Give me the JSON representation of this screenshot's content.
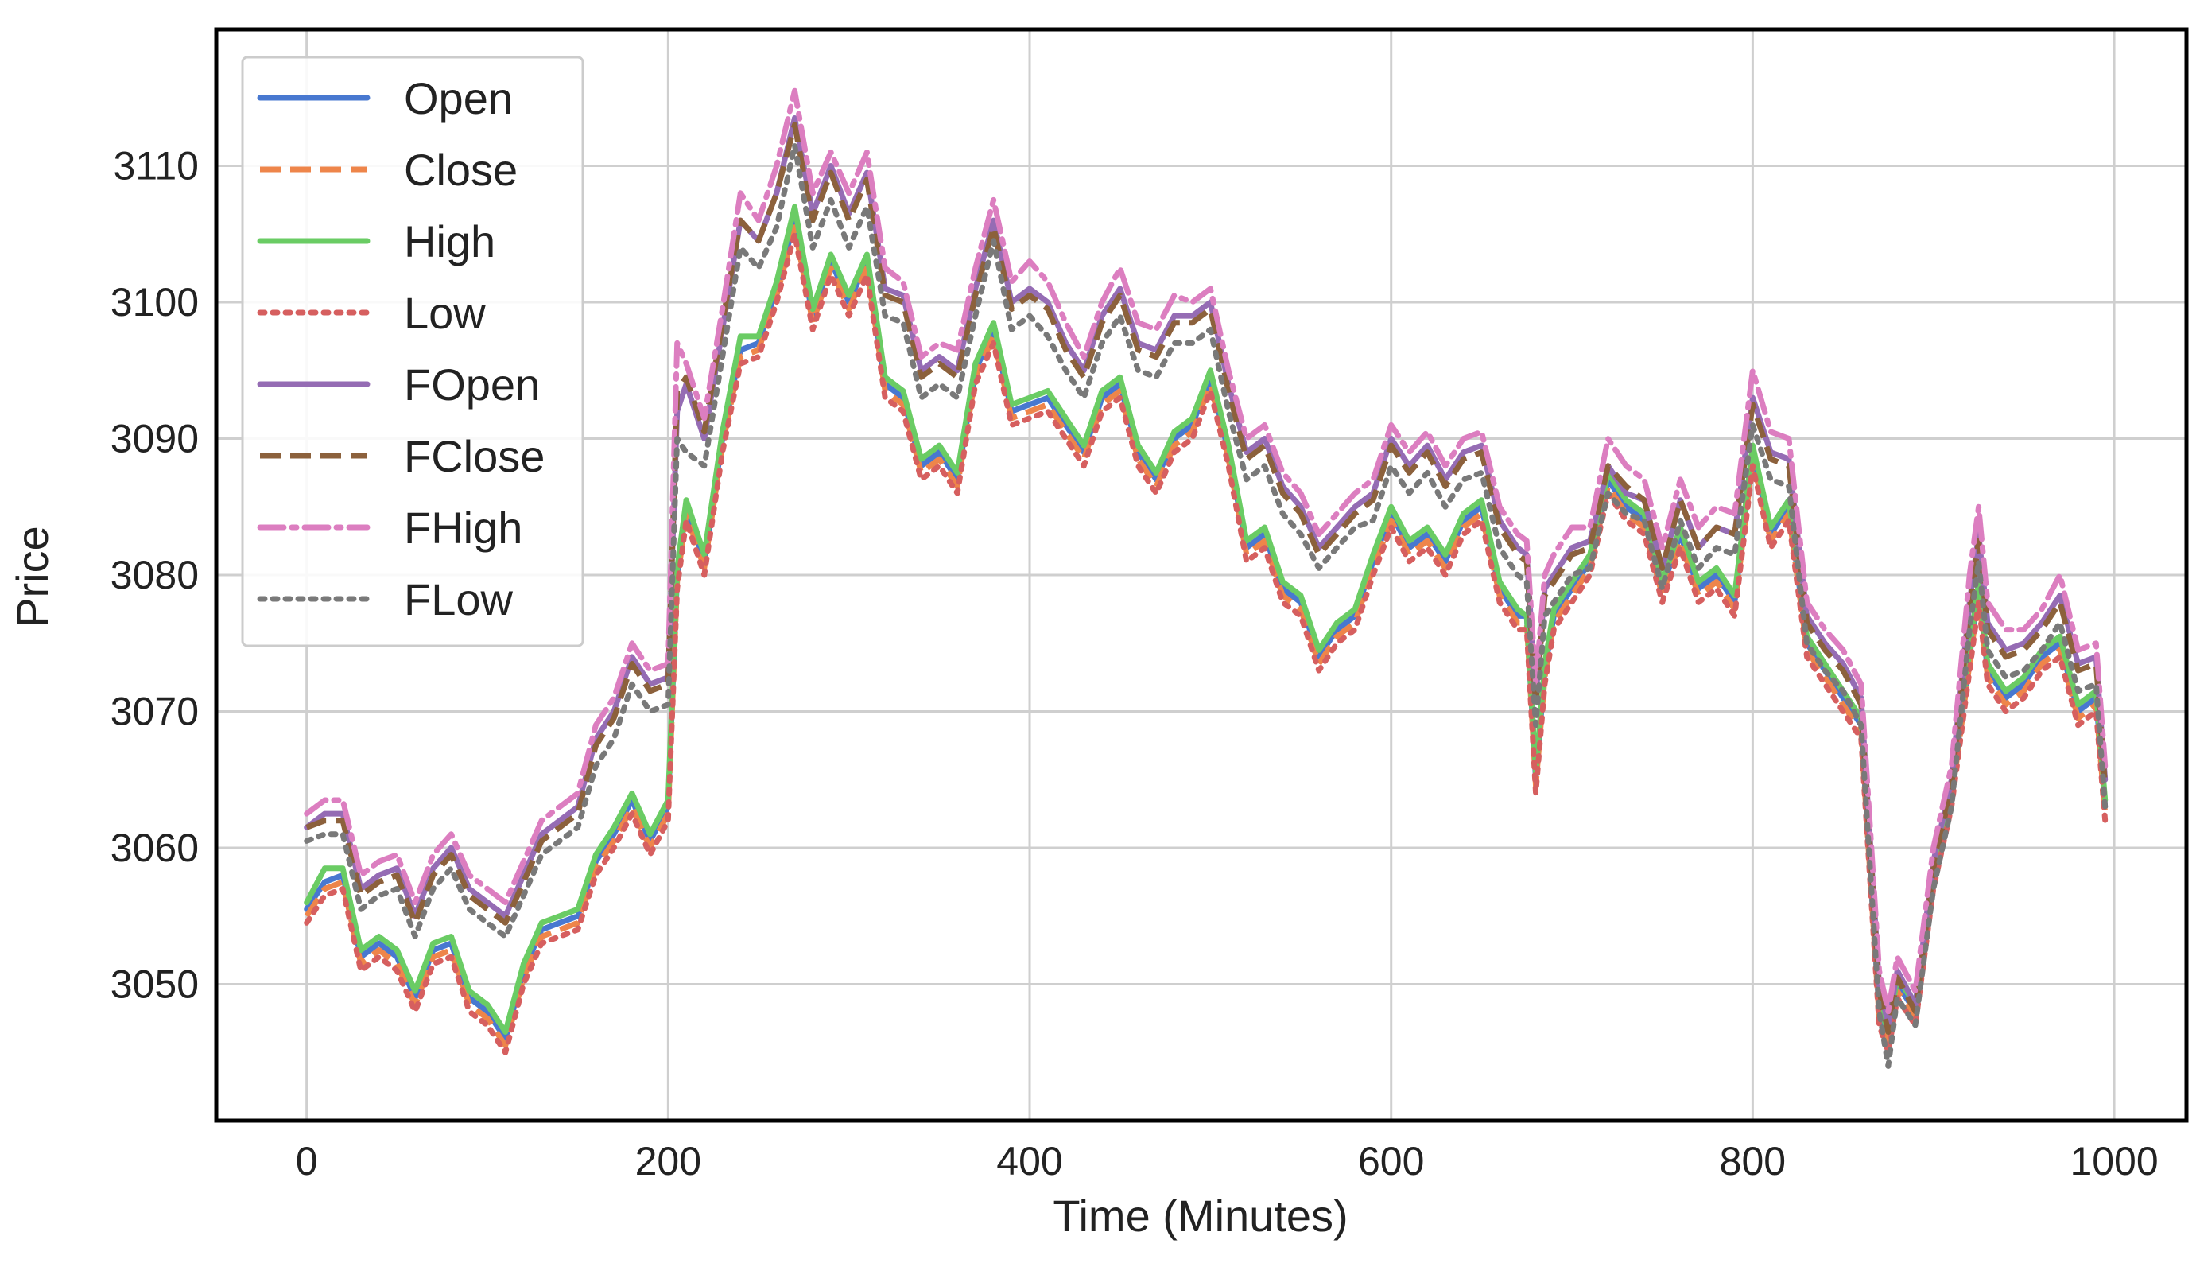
{
  "chart_data": {
    "type": "line",
    "title": "",
    "xlabel": "Time (Minutes)",
    "ylabel": "Price",
    "xlim": [
      -50,
      1040
    ],
    "ylim": [
      3040,
      3120
    ],
    "xticks": [
      0,
      200,
      400,
      600,
      800,
      1000
    ],
    "yticks": [
      3050,
      3060,
      3070,
      3080,
      3090,
      3100,
      3110
    ],
    "grid": true,
    "legend": "top-left",
    "x": [
      0,
      10,
      20,
      30,
      40,
      50,
      60,
      70,
      80,
      90,
      100,
      110,
      120,
      130,
      140,
      150,
      160,
      170,
      180,
      190,
      200,
      205,
      210,
      220,
      230,
      240,
      250,
      260,
      270,
      280,
      290,
      300,
      310,
      320,
      330,
      340,
      350,
      360,
      370,
      380,
      390,
      400,
      410,
      420,
      430,
      440,
      450,
      460,
      470,
      480,
      490,
      500,
      510,
      520,
      530,
      540,
      550,
      560,
      570,
      580,
      590,
      600,
      610,
      620,
      630,
      640,
      650,
      660,
      670,
      675,
      680,
      685,
      690,
      700,
      710,
      720,
      730,
      740,
      750,
      760,
      770,
      780,
      790,
      800,
      810,
      820,
      830,
      840,
      850,
      860,
      870,
      875,
      880,
      890,
      900,
      910,
      920,
      925,
      930,
      940,
      950,
      960,
      970,
      980,
      990,
      995
    ],
    "series": [
      {
        "name": "Open",
        "color": "#4878d0",
        "dash": "solid",
        "values": [
          3055.5,
          3057.5,
          3058,
          3052,
          3053,
          3052,
          3049,
          3052.5,
          3053,
          3049,
          3048,
          3046,
          3051,
          3054,
          3054.5,
          3055,
          3059,
          3061,
          3063.5,
          3060.5,
          3063,
          3080,
          3085,
          3081,
          3090,
          3096.5,
          3097,
          3101,
          3106,
          3099,
          3103,
          3100,
          3103,
          3094,
          3093,
          3088,
          3089,
          3087,
          3095,
          3098,
          3092,
          3092.5,
          3093,
          3091,
          3089,
          3093,
          3094,
          3089,
          3087,
          3090,
          3091,
          3094.5,
          3089,
          3082,
          3083,
          3079,
          3078,
          3074,
          3076,
          3077,
          3081,
          3084.5,
          3082,
          3083,
          3081,
          3084,
          3085,
          3079,
          3077,
          3077,
          3065,
          3073,
          3077,
          3079,
          3081,
          3087,
          3085,
          3084,
          3079,
          3083,
          3079,
          3080,
          3078,
          3089,
          3083,
          3085,
          3075,
          3073,
          3071,
          3069,
          3048,
          3046,
          3050,
          3048,
          3058,
          3064,
          3074,
          3079,
          3073,
          3071,
          3072,
          3074,
          3075,
          3070,
          3071,
          3063
        ]
      },
      {
        "name": "Close",
        "color": "#ee854a",
        "dash": "dashed",
        "values": [
          3055,
          3057,
          3057.5,
          3051.5,
          3052.5,
          3051.5,
          3048.5,
          3052,
          3052.5,
          3048.5,
          3047.5,
          3045.5,
          3050.5,
          3053.5,
          3054,
          3054.5,
          3058.5,
          3060.5,
          3063,
          3060,
          3062.5,
          3079.5,
          3084.5,
          3080.5,
          3089.5,
          3096,
          3096.5,
          3100.5,
          3105.5,
          3098.5,
          3102.5,
          3099.5,
          3102.5,
          3093.5,
          3092.5,
          3087.5,
          3088.5,
          3086.5,
          3094.5,
          3097.5,
          3091.5,
          3092,
          3092.5,
          3090.5,
          3088.5,
          3092.5,
          3093.5,
          3088.5,
          3086.5,
          3089.5,
          3090.5,
          3094,
          3088.5,
          3081.5,
          3082.5,
          3078.5,
          3077.5,
          3073.5,
          3075.5,
          3076.5,
          3080.5,
          3084,
          3081.5,
          3082.5,
          3080.5,
          3083.5,
          3084.5,
          3078.5,
          3076.5,
          3076.5,
          3064.5,
          3072.5,
          3076.5,
          3078.5,
          3080.5,
          3086.5,
          3084.5,
          3083.5,
          3078.5,
          3082.5,
          3078.5,
          3079.5,
          3077.5,
          3088.5,
          3082.5,
          3084.5,
          3074.5,
          3072.5,
          3070.5,
          3068.5,
          3047.5,
          3045.5,
          3049.5,
          3047.5,
          3057.5,
          3063.5,
          3073.5,
          3078.5,
          3072.5,
          3070.5,
          3071.5,
          3073.5,
          3074.5,
          3069.5,
          3070.5,
          3062.5
        ]
      },
      {
        "name": "High",
        "color": "#6acc64",
        "dash": "solid",
        "values": [
          3056,
          3058.5,
          3058.5,
          3052.5,
          3053.5,
          3052.5,
          3049.5,
          3053,
          3053.5,
          3049.5,
          3048.5,
          3046.5,
          3051.5,
          3054.5,
          3055,
          3055.5,
          3059.5,
          3061.5,
          3064,
          3061,
          3063.5,
          3080.5,
          3085.5,
          3081.5,
          3090.5,
          3097.5,
          3097.5,
          3101.5,
          3107,
          3099.5,
          3103.5,
          3100.5,
          3103.5,
          3094.5,
          3093.5,
          3088.5,
          3089.5,
          3087.5,
          3095.5,
          3098.5,
          3092.5,
          3093,
          3093.5,
          3091.5,
          3089.5,
          3093.5,
          3094.5,
          3089.5,
          3087.5,
          3090.5,
          3091.5,
          3095,
          3089.5,
          3082.5,
          3083.5,
          3079.5,
          3078.5,
          3074.5,
          3076.5,
          3077.5,
          3081.5,
          3085,
          3082.5,
          3083.5,
          3081.5,
          3084.5,
          3085.5,
          3079.5,
          3077.5,
          3077,
          3065.5,
          3073.5,
          3077.5,
          3079.5,
          3081.5,
          3087.5,
          3085.5,
          3084.5,
          3079.5,
          3083.5,
          3079.5,
          3080.5,
          3078.5,
          3089.5,
          3083.5,
          3085.5,
          3075.5,
          3073.5,
          3071.5,
          3069.5,
          3048.5,
          3046.5,
          3050.5,
          3048.5,
          3058.5,
          3064.5,
          3074.5,
          3079.5,
          3073.5,
          3071.5,
          3072.5,
          3074.5,
          3075.5,
          3070.5,
          3071.5,
          3063.5
        ]
      },
      {
        "name": "Low",
        "color": "#d65f5f",
        "dash": "dotted",
        "values": [
          3054.5,
          3056.5,
          3057,
          3051,
          3052,
          3051,
          3048,
          3051.5,
          3052,
          3048,
          3047,
          3045,
          3050,
          3053,
          3053.5,
          3054,
          3058,
          3060,
          3062.5,
          3059.5,
          3062,
          3079,
          3084,
          3080,
          3089,
          3095.5,
          3096,
          3100,
          3105,
          3098,
          3102,
          3099,
          3102,
          3093,
          3092,
          3087,
          3088,
          3086,
          3094,
          3097,
          3091,
          3091.5,
          3092,
          3090,
          3088,
          3092,
          3093,
          3088,
          3086,
          3089,
          3090,
          3093.5,
          3088,
          3081,
          3082,
          3078,
          3077,
          3073,
          3075,
          3076,
          3080,
          3083.5,
          3081,
          3082,
          3080,
          3083,
          3084,
          3078,
          3076,
          3076,
          3064,
          3072,
          3076,
          3078,
          3080,
          3086,
          3084,
          3083,
          3078,
          3082,
          3078,
          3079,
          3077,
          3088,
          3082,
          3084,
          3074,
          3072,
          3070,
          3068,
          3047,
          3045,
          3049,
          3047,
          3057,
          3063,
          3073,
          3078,
          3072,
          3070,
          3071,
          3073,
          3074,
          3069,
          3070,
          3062
        ]
      },
      {
        "name": "FOpen",
        "color": "#956cb4",
        "dash": "solid",
        "values": [
          3061.5,
          3062.5,
          3062.5,
          3057,
          3058,
          3058.5,
          3055,
          3058.5,
          3060,
          3057,
          3056,
          3055,
          3058,
          3061,
          3062,
          3063,
          3068,
          3070,
          3074,
          3072,
          3072.5,
          3092,
          3094,
          3090,
          3098,
          3106,
          3104.5,
          3108,
          3113.5,
          3106.5,
          3110,
          3106.5,
          3109.5,
          3101,
          3100.5,
          3095,
          3096,
          3095,
          3101,
          3106,
          3100,
          3101,
          3100,
          3097,
          3095,
          3099,
          3101,
          3097,
          3096.5,
          3099,
          3099,
          3100,
          3094,
          3089,
          3090,
          3086.5,
          3085,
          3082,
          3083.5,
          3085,
          3086,
          3090,
          3088,
          3089.5,
          3087,
          3089,
          3089.5,
          3084,
          3082,
          3081.5,
          3071,
          3079,
          3080,
          3082,
          3082.5,
          3088,
          3086,
          3085.5,
          3080.5,
          3085.5,
          3082,
          3083.5,
          3083,
          3093,
          3089,
          3088.5,
          3077,
          3075,
          3073.5,
          3071,
          3050,
          3047,
          3051,
          3048.5,
          3059,
          3065,
          3078,
          3083,
          3076.5,
          3074.5,
          3075,
          3076.5,
          3078.5,
          3073.5,
          3074,
          3065
        ]
      },
      {
        "name": "FClose",
        "color": "#8c613c",
        "dash": "dashed",
        "values": [
          3061.5,
          3062,
          3062,
          3056.5,
          3057.5,
          3058,
          3054.5,
          3058,
          3059.5,
          3056.5,
          3055.5,
          3054.5,
          3057.5,
          3060.5,
          3061.5,
          3062.5,
          3067.5,
          3069.5,
          3073.5,
          3071.5,
          3072,
          3093.5,
          3094.5,
          3090.5,
          3098.5,
          3106,
          3104.5,
          3108,
          3113,
          3106,
          3109.5,
          3106,
          3109,
          3100.5,
          3100,
          3094.5,
          3095.5,
          3094.5,
          3100.5,
          3105.5,
          3099.5,
          3100.5,
          3099.5,
          3096.5,
          3094.5,
          3098.5,
          3100.5,
          3096.5,
          3096,
          3098.5,
          3098.5,
          3099.5,
          3093.5,
          3088.5,
          3089.5,
          3086,
          3084.5,
          3081.5,
          3083,
          3084.5,
          3085.5,
          3089.5,
          3087.5,
          3089,
          3086.5,
          3088.5,
          3089,
          3083.5,
          3081.5,
          3081,
          3070.5,
          3078.5,
          3079.5,
          3081.5,
          3082,
          3088,
          3086.5,
          3085.5,
          3080.5,
          3085.5,
          3082,
          3083.5,
          3083,
          3092.5,
          3088.5,
          3088,
          3076.5,
          3074.5,
          3073,
          3070.5,
          3049.5,
          3046.5,
          3050.5,
          3048,
          3058.5,
          3064.5,
          3077.5,
          3082.5,
          3076,
          3074,
          3074.5,
          3076,
          3078,
          3073,
          3073.5,
          3064.5
        ]
      },
      {
        "name": "FHigh",
        "color": "#dc7ec0",
        "dash": "dashdot",
        "values": [
          3062.5,
          3063.5,
          3063.5,
          3058,
          3059,
          3059.5,
          3056,
          3059.5,
          3061,
          3058,
          3057,
          3056,
          3059,
          3062,
          3063,
          3064,
          3069,
          3071,
          3075,
          3073,
          3073.5,
          3097,
          3095.5,
          3091.5,
          3099.5,
          3108,
          3106,
          3110,
          3115.5,
          3108,
          3111,
          3108,
          3111,
          3102.5,
          3101.5,
          3096,
          3097,
          3096.5,
          3102.5,
          3107.5,
          3101.5,
          3103,
          3101.5,
          3098.5,
          3096,
          3100,
          3102.5,
          3098.5,
          3098,
          3100.5,
          3100,
          3101,
          3095,
          3090,
          3091,
          3087.5,
          3086,
          3083,
          3084.5,
          3086,
          3087,
          3091,
          3089,
          3090.5,
          3088,
          3090,
          3090.5,
          3085,
          3083,
          3082.5,
          3072,
          3080,
          3081.5,
          3083.5,
          3083.5,
          3090,
          3088,
          3087,
          3082,
          3087,
          3083.5,
          3085,
          3084.5,
          3095,
          3090.5,
          3090,
          3078,
          3076,
          3074.5,
          3072,
          3051,
          3048,
          3052,
          3049.5,
          3060,
          3066,
          3080,
          3085,
          3078,
          3076,
          3076,
          3077.5,
          3080,
          3074.5,
          3075,
          3066
        ]
      },
      {
        "name": "FLow",
        "color": "#797979",
        "dash": "dotted",
        "values": [
          3060.5,
          3061,
          3061,
          3055.5,
          3056.5,
          3057,
          3053.5,
          3057,
          3058.5,
          3055.5,
          3054.5,
          3053.5,
          3056.5,
          3059.5,
          3060.5,
          3061.5,
          3066,
          3068,
          3072,
          3070,
          3070.5,
          3090,
          3089,
          3088,
          3096,
          3104,
          3102.5,
          3105.5,
          3111.5,
          3104,
          3107.5,
          3104,
          3107,
          3099,
          3098.5,
          3093,
          3094,
          3093,
          3099,
          3104.5,
          3098,
          3099,
          3097.5,
          3095,
          3093,
          3097,
          3099,
          3095,
          3094.5,
          3097,
          3097,
          3098,
          3092,
          3087,
          3088,
          3084.5,
          3083,
          3080.5,
          3082,
          3083.5,
          3084,
          3088,
          3086,
          3087.5,
          3085,
          3087,
          3087.5,
          3082,
          3080,
          3079.5,
          3069,
          3077,
          3078,
          3080,
          3080.5,
          3086,
          3084.5,
          3084,
          3079,
          3084,
          3080.5,
          3082,
          3081.5,
          3091,
          3087,
          3086.5,
          3075,
          3073,
          3071.5,
          3069,
          3048,
          3044,
          3049,
          3047,
          3057,
          3063,
          3076,
          3081,
          3074.5,
          3072.5,
          3073,
          3074.5,
          3076.5,
          3071.5,
          3072,
          3063
        ]
      }
    ]
  }
}
